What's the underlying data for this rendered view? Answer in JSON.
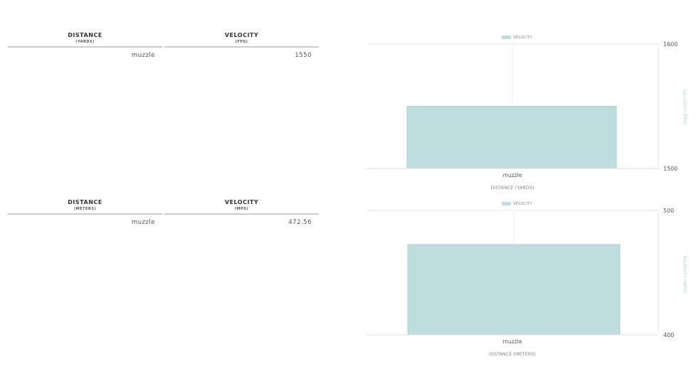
{
  "tables": [
    {
      "headers": [
        {
          "title": "DISTANCE",
          "unit": "(YARDS)"
        },
        {
          "title": "VELOCITY",
          "unit": "(FPS)"
        }
      ],
      "rows": [
        [
          "muzzle",
          "1550"
        ]
      ]
    },
    {
      "headers": [
        {
          "title": "DISTANCE",
          "unit": "(METERS)"
        },
        {
          "title": "VELOCITY",
          "unit": "(MPS)"
        }
      ],
      "rows": [
        [
          "muzzle",
          "472.56"
        ]
      ]
    }
  ],
  "chart_data": [
    {
      "type": "bar",
      "categories": [
        "muzzle"
      ],
      "series": [
        {
          "name": "VELOCITY",
          "values": [
            1550
          ]
        }
      ],
      "xlabel": "DISTANCE (YARDS)",
      "ylabel": "VELOCITY (FPS)",
      "ylim": [
        1500,
        1600
      ],
      "yticks": [
        "1600",
        "1500"
      ],
      "legend": "top",
      "grid": true,
      "color": "#bedddf"
    },
    {
      "type": "bar",
      "categories": [
        "muzzle"
      ],
      "series": [
        {
          "name": "VELOCITY",
          "values": [
            472.56
          ]
        }
      ],
      "xlabel": "DISTANCE (METERS)",
      "ylabel": "VELOCITY (MPS)",
      "ylim": [
        400,
        500
      ],
      "yticks": [
        "500",
        "400"
      ],
      "legend": "top",
      "grid": true,
      "color": "#bedddf"
    }
  ]
}
